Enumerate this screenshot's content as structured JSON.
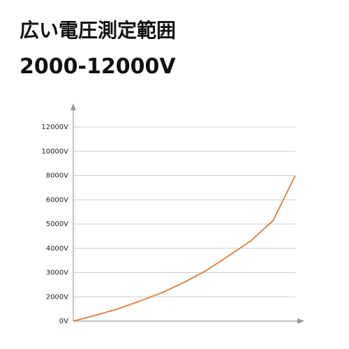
{
  "chart_data": {
    "type": "line",
    "title": "広い電圧測定範囲",
    "subtitle": "2000-12000V",
    "series": [
      {
        "color": "#e07a3a",
        "values": [
          0,
          470,
          1000,
          1650,
          2170,
          2600,
          3090,
          3690,
          4310,
          5140,
          8000
        ]
      }
    ],
    "ylim": [
      0,
      12000
    ],
    "yticks": [
      {
        "value": 0,
        "label": "0V"
      },
      {
        "value": 2000,
        "label": "2000V"
      },
      {
        "value": 3000,
        "label": "3000V"
      },
      {
        "value": 4000,
        "label": "4000V"
      },
      {
        "value": 5000,
        "label": "5000V"
      },
      {
        "value": 6000,
        "label": "6000V"
      },
      {
        "value": 8000,
        "label": "8000V"
      },
      {
        "value": 10000,
        "label": "10000V"
      },
      {
        "value": 12000,
        "label": "12000V"
      }
    ],
    "grid": true
  }
}
